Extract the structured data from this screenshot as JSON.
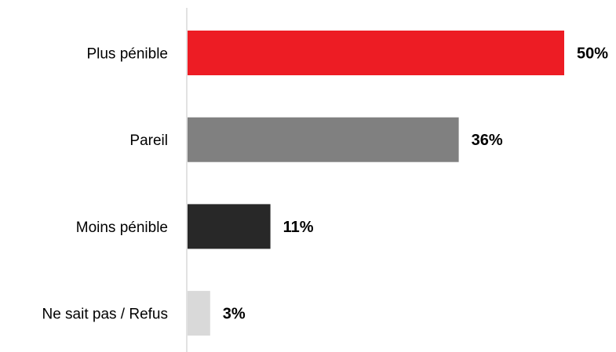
{
  "chart_data": {
    "type": "bar",
    "orientation": "horizontal",
    "categories": [
      "Plus pénible",
      "Pareil",
      "Moins pénible",
      "Ne sait pas / Refus"
    ],
    "values": [
      50,
      36,
      11,
      3
    ],
    "value_labels": [
      "50%",
      "36%",
      "11%",
      "3%"
    ],
    "colors": [
      "#ed1c24",
      "#808080",
      "#282828",
      "#d9d9d9"
    ],
    "unit": "%",
    "xlim": [
      0,
      50
    ],
    "grid": false,
    "legend": "none"
  }
}
